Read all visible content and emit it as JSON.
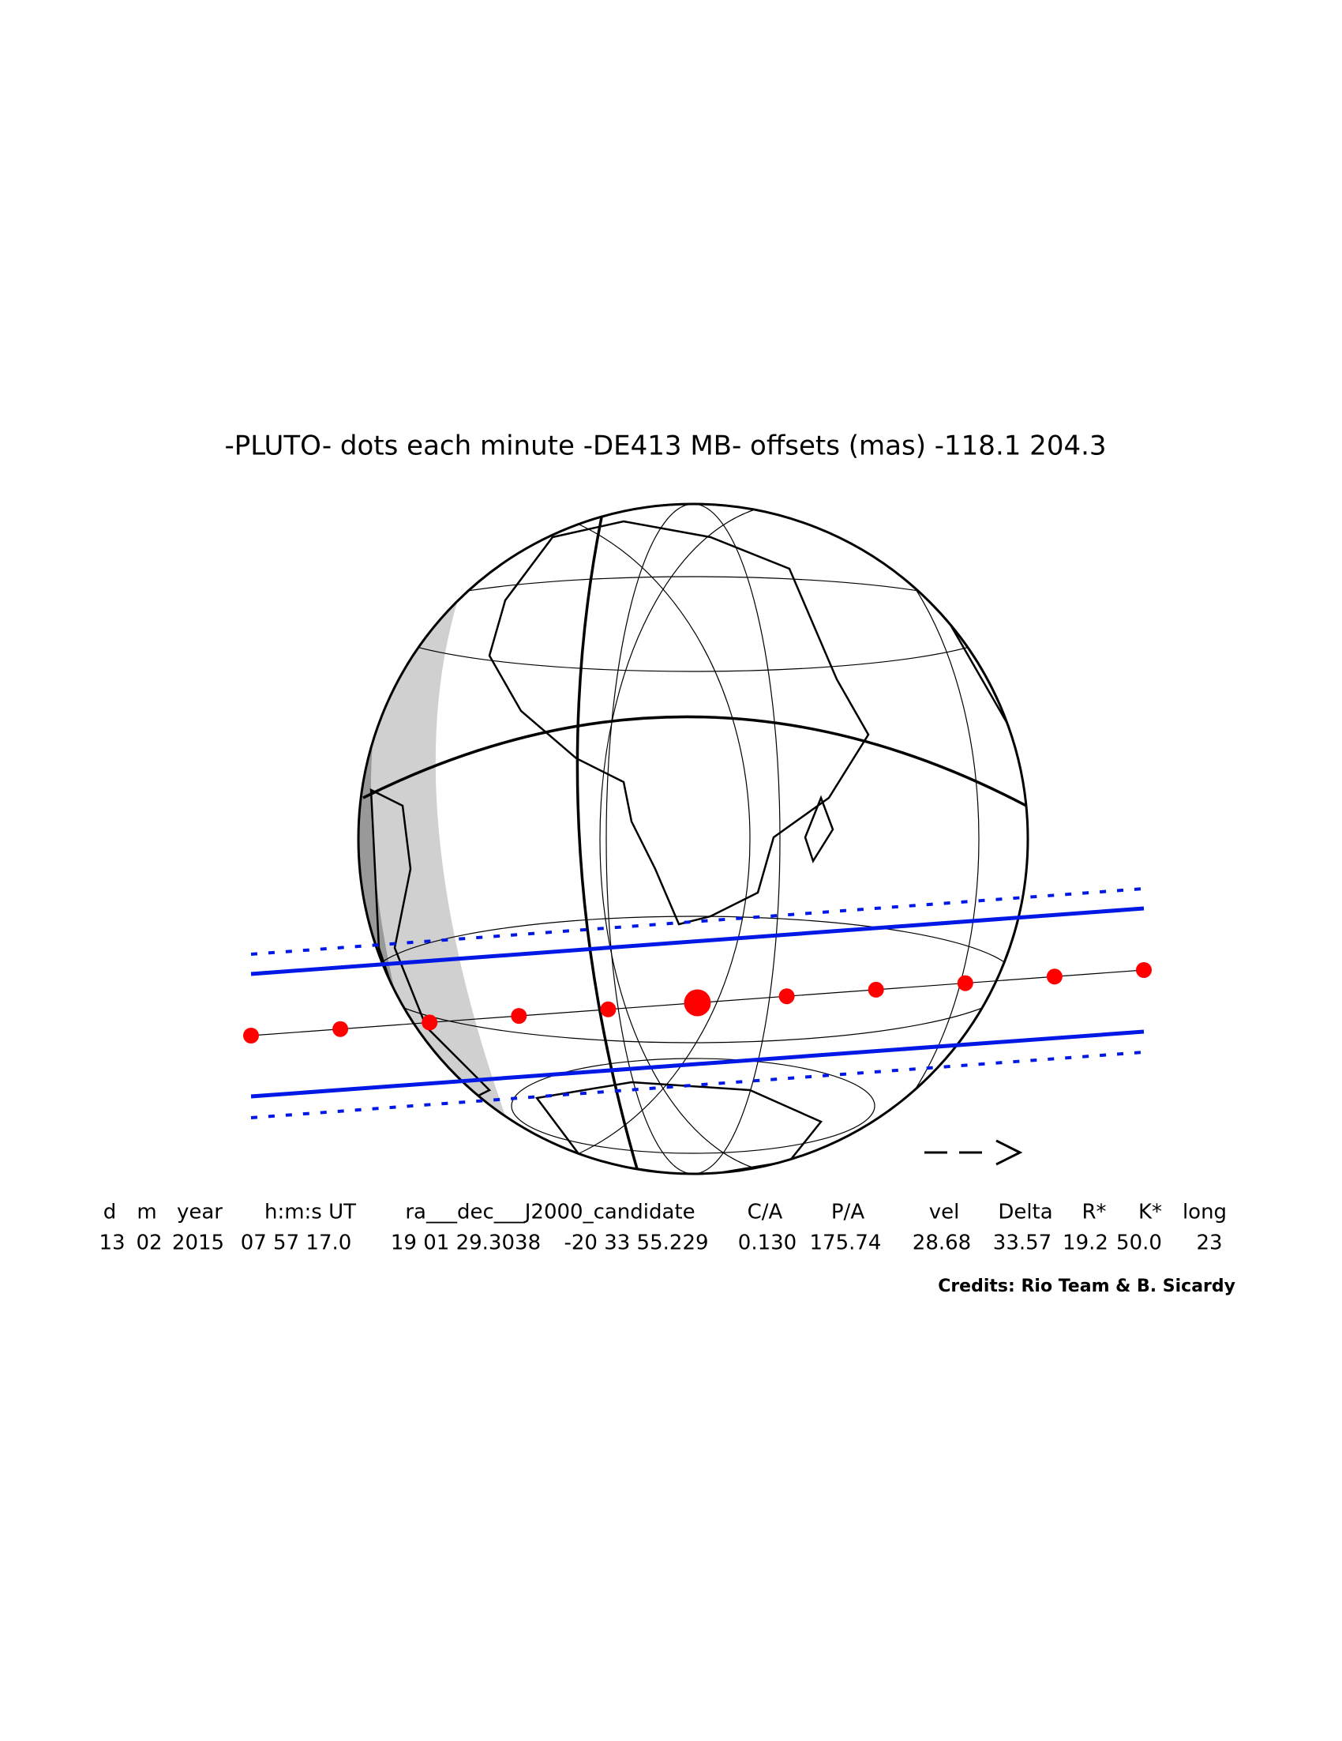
{
  "header": {
    "title": "-PLUTO-  dots each minute  -DE413 MB-  offsets (mas)  -118.1   204.3"
  },
  "table": {
    "headers": [
      "d",
      "m",
      "year",
      "h:m:s UT",
      "ra___dec___J2000_candidate",
      "C/A",
      "P/A",
      "vel",
      "Delta",
      "R*",
      "K*",
      "long"
    ],
    "rows": [
      [
        "13",
        "02",
        "2015",
        "07 57 17.0",
        "19 01 29.3038",
        "-20 33 55.229",
        "0.130",
        "175.74",
        "28.68",
        "33.57",
        "19.2",
        "50.0",
        "23"
      ]
    ]
  },
  "credits": "Credits: Rio Team & B. Sicardy"
}
